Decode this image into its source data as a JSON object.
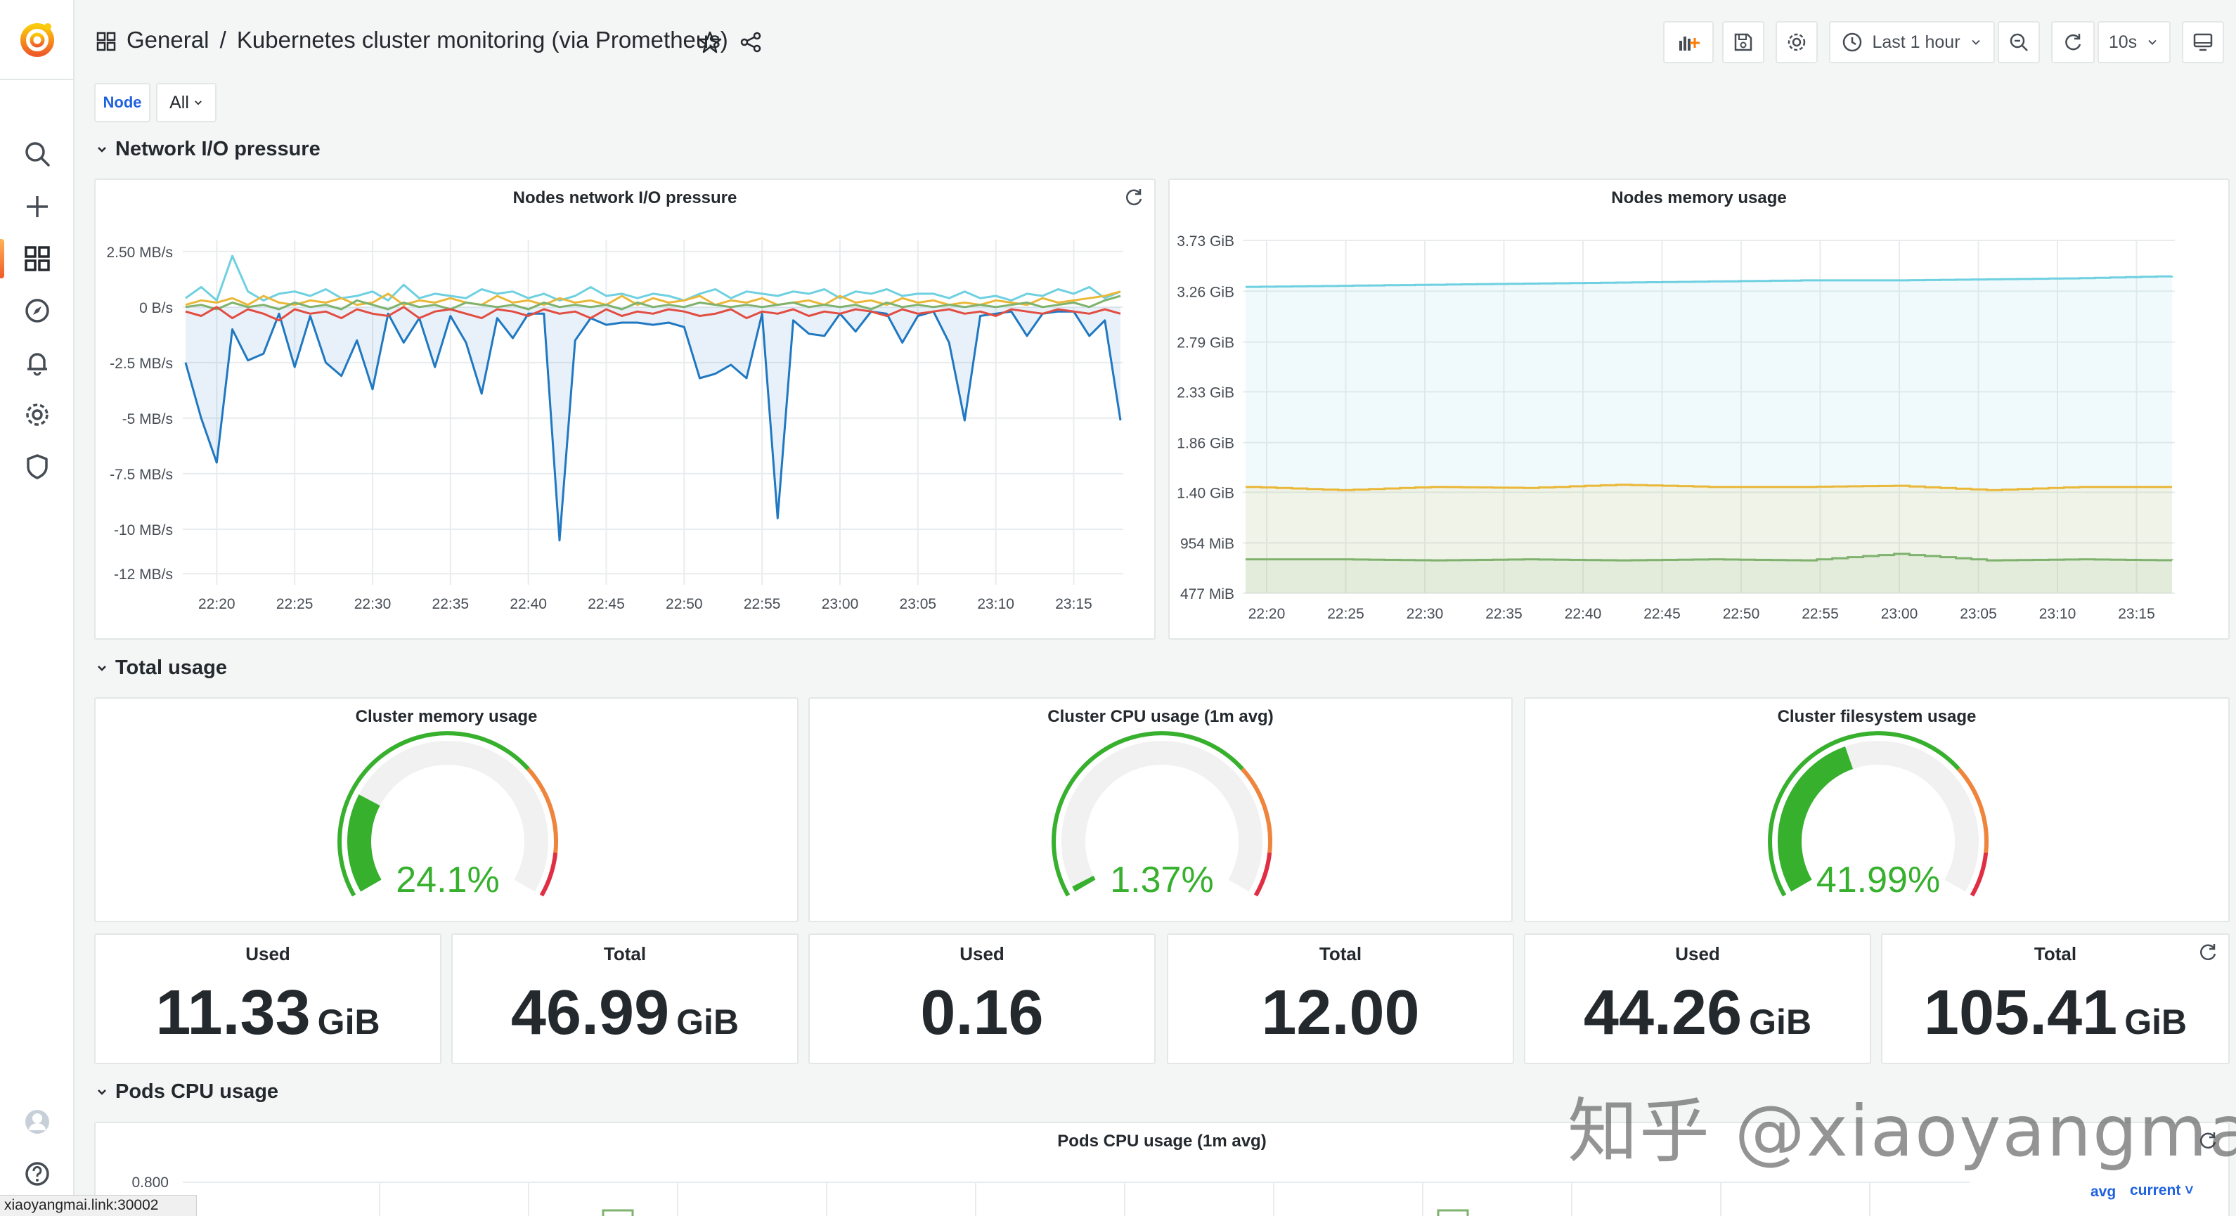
{
  "breadcrumb": {
    "folder": "General",
    "separator": "/",
    "dashboard": "Kubernetes cluster monitoring (via Prometheus)"
  },
  "toolbar": {
    "time_range": "Last 1 hour",
    "refresh_interval": "10s"
  },
  "variable": {
    "label": "Node",
    "value": "All"
  },
  "rows": {
    "network": "Network I/O pressure",
    "total": "Total usage",
    "pods": "Pods CPU usage"
  },
  "charts": {
    "network": {
      "title": "Nodes network I/O pressure",
      "y_ticks": [
        "2.50 MB/s",
        "0 B/s",
        "-2.5 MB/s",
        "-5 MB/s",
        "-7.5 MB/s",
        "-10 MB/s",
        "-12 MB/s"
      ],
      "x_ticks": [
        "22:20",
        "22:25",
        "22:30",
        "22:35",
        "22:40",
        "22:45",
        "22:50",
        "22:55",
        "23:00",
        "23:05",
        "23:10",
        "23:15"
      ]
    },
    "memory": {
      "title": "Nodes memory usage",
      "y_ticks": [
        "3.73 GiB",
        "3.26 GiB",
        "2.79 GiB",
        "2.33 GiB",
        "1.86 GiB",
        "1.40 GiB",
        "954 MiB",
        "477 MiB"
      ],
      "x_ticks": [
        "22:20",
        "22:25",
        "22:30",
        "22:35",
        "22:40",
        "22:45",
        "22:50",
        "22:55",
        "23:00",
        "23:05",
        "23:10",
        "23:15"
      ]
    },
    "pods": {
      "title": "Pods CPU usage (1m avg)",
      "y_tick": "0.800",
      "legend_avg": "avg",
      "legend_current": "current"
    }
  },
  "gauges": [
    {
      "title": "Cluster memory usage",
      "value": "24.1%",
      "percent": 24.1
    },
    {
      "title": "Cluster CPU usage (1m avg)",
      "value": "1.37%",
      "percent": 1.37
    },
    {
      "title": "Cluster filesystem usage",
      "value": "41.99%",
      "percent": 41.99
    }
  ],
  "stats": [
    {
      "title": "Used",
      "value": "11.33",
      "unit": "GiB"
    },
    {
      "title": "Total",
      "value": "46.99",
      "unit": "GiB"
    },
    {
      "title": "Used",
      "value": "0.16",
      "unit": ""
    },
    {
      "title": "Total",
      "value": "12.00",
      "unit": ""
    },
    {
      "title": "Used",
      "value": "44.26",
      "unit": "GiB"
    },
    {
      "title": "Total",
      "value": "105.41",
      "unit": "GiB"
    }
  ],
  "chart_data": [
    {
      "type": "line",
      "title": "Nodes network I/O pressure",
      "x": [
        "22:18",
        "22:19",
        "22:20",
        "22:21",
        "22:22",
        "22:23",
        "22:24",
        "22:25",
        "22:26",
        "22:27",
        "22:28",
        "22:29",
        "22:30",
        "22:31",
        "22:32",
        "22:33",
        "22:34",
        "22:35",
        "22:36",
        "22:37",
        "22:38",
        "22:39",
        "22:40",
        "22:41",
        "22:42",
        "22:43",
        "22:44",
        "22:45",
        "22:46",
        "22:47",
        "22:48",
        "22:49",
        "22:50",
        "22:51",
        "22:52",
        "22:53",
        "22:54",
        "22:55",
        "22:56",
        "22:57",
        "22:58",
        "22:59",
        "23:00",
        "23:01",
        "23:02",
        "23:03",
        "23:04",
        "23:05",
        "23:06",
        "23:07",
        "23:08",
        "23:09",
        "23:10",
        "23:11",
        "23:12",
        "23:13",
        "23:14",
        "23:15",
        "23:16",
        "23:17",
        "23:18"
      ],
      "ylim": [
        -12.5,
        3
      ],
      "series": [
        {
          "color": "#1f78c1",
          "values": [
            -2.5,
            -5,
            -7,
            -1,
            -2.4,
            -2.1,
            -0.3,
            -2.7,
            -0.4,
            -2.5,
            -3.1,
            -1.5,
            -3.7,
            -0.3,
            -1.6,
            -0.5,
            -2.7,
            -0.4,
            -1.6,
            -3.9,
            -0.5,
            -1.4,
            -0.3,
            -0.3,
            -10.5,
            -1.5,
            -0.5,
            -0.8,
            -0.7,
            -0.7,
            -0.8,
            -0.7,
            -0.9,
            -3.2,
            -3.0,
            -2.6,
            -3.2,
            -0.3,
            -9.5,
            -0.6,
            -1.2,
            -1.3,
            -0.3,
            -1.1,
            -0.2,
            -0.3,
            -1.6,
            -0.4,
            -0.2,
            -1.6,
            -5.1,
            -0.4,
            -0.3,
            -0.2,
            -1.3,
            -0.3,
            -0.2,
            -0.2,
            -1.3,
            -0.6,
            -5.1
          ]
        },
        {
          "color": "#6ed0e0",
          "values": [
            0.4,
            0.9,
            0.3,
            2.3,
            0.7,
            0.3,
            0.6,
            0.7,
            0.5,
            0.8,
            0.4,
            0.5,
            0.7,
            0.3,
            1.0,
            0.4,
            0.6,
            0.5,
            0.4,
            0.8,
            0.6,
            0.7,
            0.4,
            0.6,
            0.3,
            0.5,
            0.9,
            0.5,
            0.6,
            0.4,
            0.6,
            0.5,
            0.3,
            0.6,
            0.8,
            0.4,
            0.7,
            0.6,
            0.5,
            0.7,
            0.6,
            0.8,
            0.4,
            0.7,
            0.6,
            0.8,
            0.5,
            0.6,
            0.6,
            0.4,
            0.7,
            0.4,
            0.5,
            0.3,
            0.6,
            0.5,
            0.8,
            0.6,
            0.9,
            0.4,
            0.7
          ]
        },
        {
          "color": "#eab839",
          "values": [
            0.1,
            0.3,
            0.2,
            0.4,
            0.1,
            0.5,
            0.2,
            0.1,
            0.3,
            0.2,
            0.4,
            0.1,
            0.2,
            0.6,
            0.1,
            0.3,
            0.2,
            0.4,
            0.2,
            0.1,
            0.5,
            0.2,
            0.3,
            0.1,
            0.4,
            0.2,
            0.3,
            0.1,
            0.5,
            0.1,
            0.4,
            0.2,
            0.3,
            0.5,
            0.1,
            0.3,
            0.2,
            0.4,
            0.1,
            0.2,
            0.3,
            0.1,
            0.5,
            0.2,
            0.3,
            0.1,
            0.4,
            0.2,
            0.3,
            0.1,
            0.2,
            0.1,
            0.3,
            0.2,
            0.1,
            0.4,
            0.2,
            0.3,
            0.4,
            0.5,
            0.7
          ]
        },
        {
          "color": "#7eb26d",
          "values": [
            0.0,
            0.1,
            -0.1,
            0.2,
            0.0,
            0.1,
            -0.1,
            0.2,
            0.0,
            0.1,
            -0.1,
            0.3,
            0.1,
            -0.1,
            0.2,
            0.0,
            0.1,
            -0.1,
            0.2,
            0.1,
            0.0,
            0.1,
            -0.1,
            0.2,
            0.0,
            0.1,
            0.0,
            0.1,
            -0.1,
            0.2,
            0.0,
            0.1,
            0.0,
            0.2,
            0.1,
            0.0,
            0.1,
            0.0,
            0.1,
            0.2,
            0.0,
            0.1,
            0.0,
            0.1,
            -0.1,
            0.2,
            0.0,
            0.1,
            0.0,
            0.1,
            0.0,
            0.1,
            0.0,
            0.1,
            0.2,
            0.0,
            0.1,
            0.2,
            0.0,
            0.3,
            0.5
          ]
        },
        {
          "color": "#e24d42",
          "values": [
            -0.2,
            -0.4,
            0.0,
            -0.5,
            -0.1,
            -0.3,
            -0.6,
            -0.1,
            -0.3,
            -0.2,
            -0.5,
            -0.1,
            -0.3,
            -0.4,
            0.0,
            -0.5,
            -0.2,
            -0.1,
            -0.3,
            -0.5,
            -0.1,
            -0.2,
            -0.4,
            -0.1,
            -0.3,
            -0.2,
            -0.5,
            -0.1,
            -0.4,
            -0.2,
            -0.3,
            -0.1,
            -0.2,
            -0.4,
            -0.3,
            -0.1,
            -0.5,
            -0.2,
            -0.3,
            -0.1,
            -0.4,
            -0.2,
            -0.3,
            -0.1,
            -0.2,
            -0.4,
            -0.1,
            -0.3,
            -0.2,
            -0.1,
            -0.3,
            -0.2,
            -0.4,
            -0.1,
            -0.2,
            -0.3,
            -0.1,
            -0.2,
            -0.3,
            -0.1,
            -0.3
          ]
        }
      ]
    },
    {
      "type": "line",
      "title": "Nodes memory usage",
      "x_range": [
        "22:18",
        "23:18"
      ],
      "ylabel": "",
      "series": [
        {
          "color": "#6ed0e0",
          "fill": true,
          "values_gib": [
            3.3,
            3.31,
            3.32,
            3.33,
            3.34,
            3.35,
            3.36,
            3.36,
            3.37,
            3.38,
            3.4
          ]
        },
        {
          "color": "#eab839",
          "fill": true,
          "values_gib": [
            1.45,
            1.42,
            1.45,
            1.44,
            1.47,
            1.45,
            1.45,
            1.46,
            1.42,
            1.45,
            1.45
          ]
        },
        {
          "color": "#7eb26d",
          "fill": true,
          "values_gib": [
            0.78,
            0.78,
            0.77,
            0.78,
            0.77,
            0.78,
            0.77,
            0.83,
            0.77,
            0.78,
            0.77
          ]
        }
      ],
      "ylim_gib": [
        0.466,
        3.73
      ]
    }
  ]
}
